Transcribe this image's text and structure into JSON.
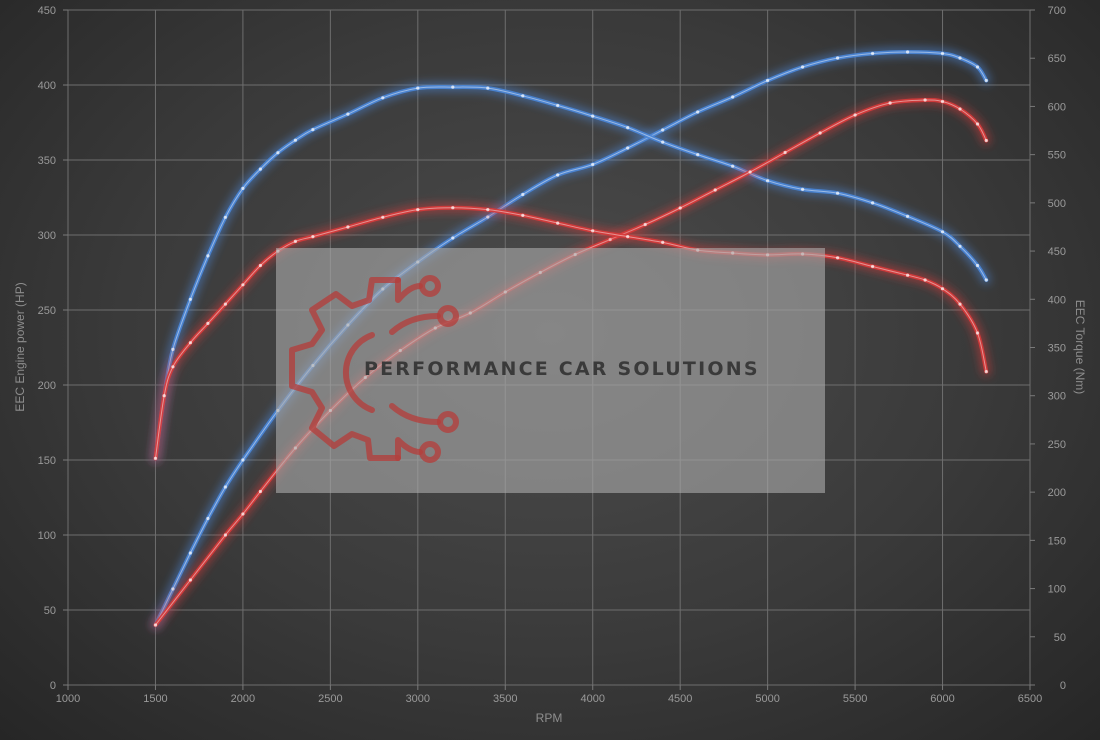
{
  "chart_data": {
    "type": "line",
    "xlabel": "RPM",
    "ylabel_left": "EEC Engine power (HP)",
    "ylabel_right": "EEC Torque (Nm)",
    "xlim": [
      1000,
      6500
    ],
    "ylim_left": [
      0,
      450
    ],
    "ylim_right": [
      0,
      700
    ],
    "x_ticks": [
      1000,
      1500,
      2000,
      2500,
      3000,
      3500,
      4000,
      4500,
      5000,
      5500,
      6000,
      6500
    ],
    "y_left_ticks": [
      0,
      50,
      100,
      150,
      200,
      250,
      300,
      350,
      400,
      450
    ],
    "y_right_ticks": [
      0,
      50,
      100,
      150,
      200,
      250,
      300,
      350,
      400,
      450,
      500,
      550,
      600,
      650,
      700
    ],
    "grid": true,
    "series": [
      {
        "axis": "left",
        "color": "#4a86d8",
        "x": [
          1500,
          1600,
          1700,
          1800,
          1900,
          2000,
          2200,
          2400,
          2600,
          2800,
          3000,
          3200,
          3400,
          3600,
          3800,
          4000,
          4200,
          4400,
          4600,
          4800,
          5000,
          5200,
          5400,
          5600,
          5800,
          6000,
          6100,
          6200,
          6250
        ],
        "values": [
          40,
          64,
          88,
          111,
          132,
          150,
          183,
          213,
          240,
          264,
          282,
          298,
          312,
          327,
          340,
          347,
          358,
          370,
          382,
          392,
          403,
          412,
          418,
          421,
          422,
          421,
          418,
          412,
          403
        ]
      },
      {
        "axis": "right",
        "color": "#4a86d8",
        "x": [
          1500,
          1550,
          1600,
          1700,
          1800,
          1900,
          2000,
          2100,
          2200,
          2300,
          2400,
          2600,
          2800,
          3000,
          3200,
          3400,
          3600,
          3800,
          4000,
          4200,
          4400,
          4600,
          4800,
          5000,
          5200,
          5400,
          5600,
          5800,
          6000,
          6100,
          6200,
          6250
        ],
        "values": [
          235,
          300,
          348,
          400,
          445,
          485,
          515,
          535,
          552,
          565,
          576,
          592,
          609,
          619,
          620,
          619,
          611,
          601,
          590,
          578,
          563,
          550,
          538,
          523,
          514,
          510,
          500,
          486,
          470,
          455,
          435,
          420
        ]
      },
      {
        "axis": "left",
        "color": "#d83a3a",
        "x": [
          1500,
          1700,
          1900,
          2000,
          2100,
          2300,
          2500,
          2700,
          2900,
          3100,
          3300,
          3500,
          3700,
          3900,
          4100,
          4300,
          4500,
          4700,
          4900,
          5100,
          5300,
          5500,
          5700,
          5900,
          6000,
          6100,
          6200,
          6250
        ],
        "values": [
          40,
          70,
          100,
          114,
          129,
          158,
          183,
          205,
          223,
          238,
          248,
          262,
          275,
          287,
          297,
          307,
          318,
          330,
          342,
          355,
          368,
          380,
          388,
          390,
          389,
          384,
          374,
          363
        ]
      },
      {
        "axis": "right",
        "color": "#d83a3a",
        "x": [
          1500,
          1550,
          1600,
          1700,
          1800,
          1900,
          2000,
          2100,
          2200,
          2300,
          2400,
          2600,
          2800,
          3000,
          3200,
          3400,
          3600,
          3800,
          4000,
          4200,
          4400,
          4600,
          4800,
          5000,
          5200,
          5400,
          5600,
          5800,
          5900,
          6000,
          6100,
          6200,
          6250
        ],
        "values": [
          235,
          300,
          330,
          355,
          375,
          395,
          415,
          435,
          450,
          460,
          465,
          475,
          485,
          493,
          495,
          493,
          487,
          479,
          471,
          465,
          459,
          451,
          448,
          446,
          447,
          443,
          434,
          425,
          420,
          411,
          395,
          365,
          325
        ]
      }
    ]
  },
  "watermark": {
    "text": "PERFORMANCE CAR SOLUTIONS",
    "logo": "gear-circuit-logo",
    "logo_color": "#b33f3c"
  }
}
